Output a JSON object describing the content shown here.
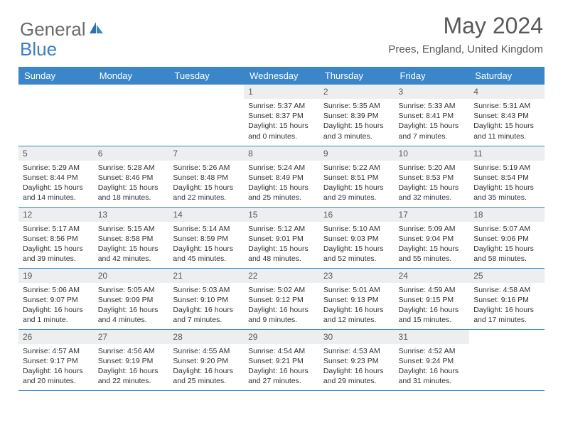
{
  "logo": {
    "word1": "General",
    "word2": "Blue"
  },
  "header": {
    "month_title": "May 2024",
    "location": "Prees, England, United Kingdom"
  },
  "colors": {
    "header_bg": "#3a86c8",
    "header_text": "#ffffff",
    "daynum_bg": "#eceeef",
    "border": "#3a86c8",
    "logo_gray": "#6b6b6b",
    "logo_blue": "#3a7fc4",
    "title_color": "#595959"
  },
  "weekdays": [
    "Sunday",
    "Monday",
    "Tuesday",
    "Wednesday",
    "Thursday",
    "Friday",
    "Saturday"
  ],
  "weeks": [
    [
      null,
      null,
      null,
      {
        "n": "1",
        "sr": "5:37 AM",
        "ss": "8:37 PM",
        "dl": "15 hours and 0 minutes."
      },
      {
        "n": "2",
        "sr": "5:35 AM",
        "ss": "8:39 PM",
        "dl": "15 hours and 3 minutes."
      },
      {
        "n": "3",
        "sr": "5:33 AM",
        "ss": "8:41 PM",
        "dl": "15 hours and 7 minutes."
      },
      {
        "n": "4",
        "sr": "5:31 AM",
        "ss": "8:43 PM",
        "dl": "15 hours and 11 minutes."
      }
    ],
    [
      {
        "n": "5",
        "sr": "5:29 AM",
        "ss": "8:44 PM",
        "dl": "15 hours and 14 minutes."
      },
      {
        "n": "6",
        "sr": "5:28 AM",
        "ss": "8:46 PM",
        "dl": "15 hours and 18 minutes."
      },
      {
        "n": "7",
        "sr": "5:26 AM",
        "ss": "8:48 PM",
        "dl": "15 hours and 22 minutes."
      },
      {
        "n": "8",
        "sr": "5:24 AM",
        "ss": "8:49 PM",
        "dl": "15 hours and 25 minutes."
      },
      {
        "n": "9",
        "sr": "5:22 AM",
        "ss": "8:51 PM",
        "dl": "15 hours and 29 minutes."
      },
      {
        "n": "10",
        "sr": "5:20 AM",
        "ss": "8:53 PM",
        "dl": "15 hours and 32 minutes."
      },
      {
        "n": "11",
        "sr": "5:19 AM",
        "ss": "8:54 PM",
        "dl": "15 hours and 35 minutes."
      }
    ],
    [
      {
        "n": "12",
        "sr": "5:17 AM",
        "ss": "8:56 PM",
        "dl": "15 hours and 39 minutes."
      },
      {
        "n": "13",
        "sr": "5:15 AM",
        "ss": "8:58 PM",
        "dl": "15 hours and 42 minutes."
      },
      {
        "n": "14",
        "sr": "5:14 AM",
        "ss": "8:59 PM",
        "dl": "15 hours and 45 minutes."
      },
      {
        "n": "15",
        "sr": "5:12 AM",
        "ss": "9:01 PM",
        "dl": "15 hours and 48 minutes."
      },
      {
        "n": "16",
        "sr": "5:10 AM",
        "ss": "9:03 PM",
        "dl": "15 hours and 52 minutes."
      },
      {
        "n": "17",
        "sr": "5:09 AM",
        "ss": "9:04 PM",
        "dl": "15 hours and 55 minutes."
      },
      {
        "n": "18",
        "sr": "5:07 AM",
        "ss": "9:06 PM",
        "dl": "15 hours and 58 minutes."
      }
    ],
    [
      {
        "n": "19",
        "sr": "5:06 AM",
        "ss": "9:07 PM",
        "dl": "16 hours and 1 minute."
      },
      {
        "n": "20",
        "sr": "5:05 AM",
        "ss": "9:09 PM",
        "dl": "16 hours and 4 minutes."
      },
      {
        "n": "21",
        "sr": "5:03 AM",
        "ss": "9:10 PM",
        "dl": "16 hours and 7 minutes."
      },
      {
        "n": "22",
        "sr": "5:02 AM",
        "ss": "9:12 PM",
        "dl": "16 hours and 9 minutes."
      },
      {
        "n": "23",
        "sr": "5:01 AM",
        "ss": "9:13 PM",
        "dl": "16 hours and 12 minutes."
      },
      {
        "n": "24",
        "sr": "4:59 AM",
        "ss": "9:15 PM",
        "dl": "16 hours and 15 minutes."
      },
      {
        "n": "25",
        "sr": "4:58 AM",
        "ss": "9:16 PM",
        "dl": "16 hours and 17 minutes."
      }
    ],
    [
      {
        "n": "26",
        "sr": "4:57 AM",
        "ss": "9:17 PM",
        "dl": "16 hours and 20 minutes."
      },
      {
        "n": "27",
        "sr": "4:56 AM",
        "ss": "9:19 PM",
        "dl": "16 hours and 22 minutes."
      },
      {
        "n": "28",
        "sr": "4:55 AM",
        "ss": "9:20 PM",
        "dl": "16 hours and 25 minutes."
      },
      {
        "n": "29",
        "sr": "4:54 AM",
        "ss": "9:21 PM",
        "dl": "16 hours and 27 minutes."
      },
      {
        "n": "30",
        "sr": "4:53 AM",
        "ss": "9:23 PM",
        "dl": "16 hours and 29 minutes."
      },
      {
        "n": "31",
        "sr": "4:52 AM",
        "ss": "9:24 PM",
        "dl": "16 hours and 31 minutes."
      },
      null
    ]
  ],
  "labels": {
    "sunrise": "Sunrise: ",
    "sunset": "Sunset: ",
    "daylight": "Daylight: "
  }
}
